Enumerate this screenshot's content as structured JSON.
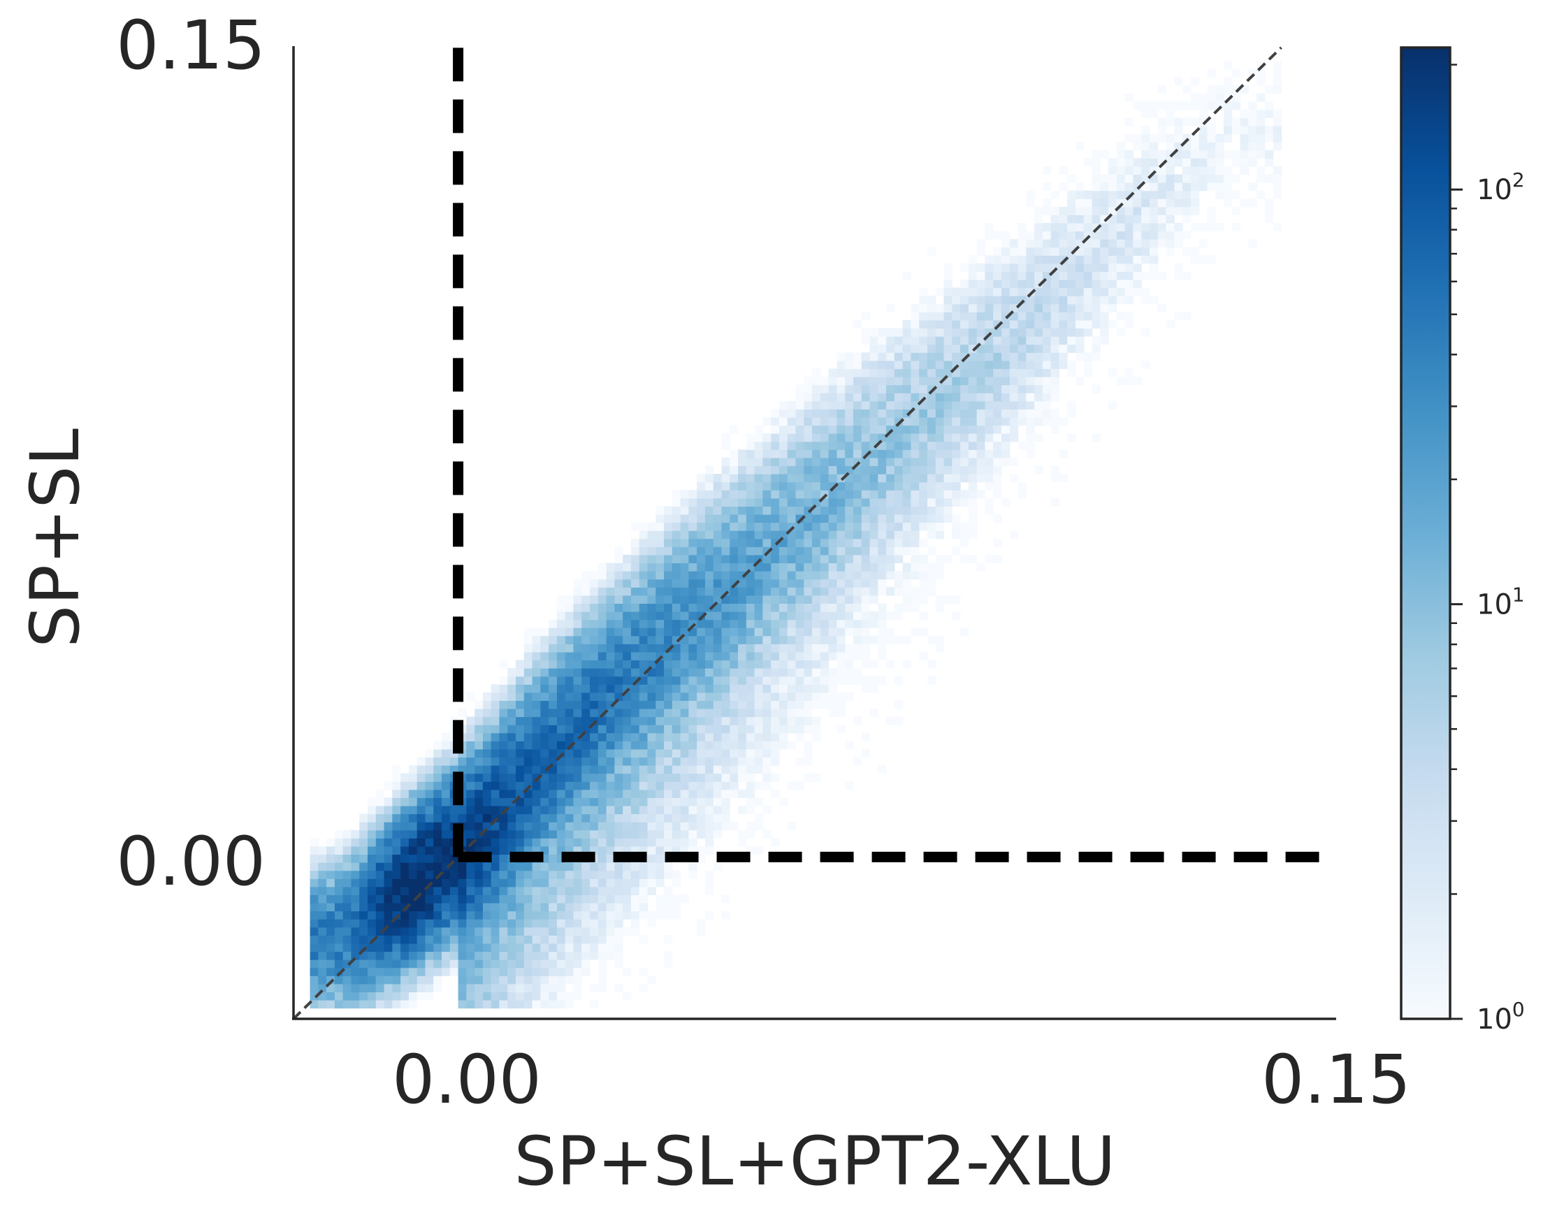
{
  "chart_data": {
    "type": "heatmap",
    "subtype": "2d-histogram",
    "title": "",
    "xlabel": "SP+SL+GPT2-XLU",
    "ylabel": "SP+SL",
    "xlim": [
      -0.03,
      0.16
    ],
    "ylim": [
      -0.03,
      0.15
    ],
    "x_ticks": [
      {
        "value": 0.0,
        "label": "0.00"
      },
      {
        "value": 0.15,
        "label": "0.15"
      }
    ],
    "y_ticks": [
      {
        "value": 0.0,
        "label": "0.00"
      },
      {
        "value": 0.15,
        "label": "0.15"
      }
    ],
    "colormap": "Blues",
    "color_low": "#f7fbff",
    "color_high": "#08306b",
    "colorbar": {
      "scale": "log",
      "range": [
        1,
        220
      ],
      "ticks": [
        {
          "value": 1,
          "base": "10",
          "exp": "0"
        },
        {
          "value": 10,
          "base": "10",
          "exp": "1"
        },
        {
          "value": 100,
          "base": "10",
          "exp": "2"
        }
      ]
    },
    "reference_lines": [
      {
        "type": "identity",
        "style": "dashed",
        "color": "#404040"
      },
      {
        "type": "vertical",
        "x": 0.0,
        "from_y": 0.0,
        "to_y": 0.15,
        "style": "bold-dashed",
        "color": "#000000"
      },
      {
        "type": "horizontal",
        "y": 0.0,
        "from_x": 0.0,
        "to_x": 0.16,
        "style": "bold-dashed",
        "color": "#000000"
      }
    ],
    "density": {
      "description": "counts concentrated along the y=x diagonal, peak near the origin",
      "peak_point": [
        -0.007,
        -0.004
      ],
      "peak_count": 200,
      "ridge": [
        {
          "x": -0.02,
          "y": -0.016,
          "count": 45
        },
        {
          "x": -0.01,
          "y": -0.007,
          "count": 150
        },
        {
          "x": 0.0,
          "y": 0.002,
          "count": 120
        },
        {
          "x": 0.02,
          "y": 0.024,
          "count": 60
        },
        {
          "x": 0.04,
          "y": 0.043,
          "count": 30
        },
        {
          "x": 0.06,
          "y": 0.061,
          "count": 14
        },
        {
          "x": 0.08,
          "y": 0.079,
          "count": 7
        },
        {
          "x": 0.1,
          "y": 0.097,
          "count": 4
        },
        {
          "x": 0.12,
          "y": 0.117,
          "count": 2
        },
        {
          "x": 0.14,
          "y": 0.135,
          "count": 1
        }
      ]
    }
  }
}
